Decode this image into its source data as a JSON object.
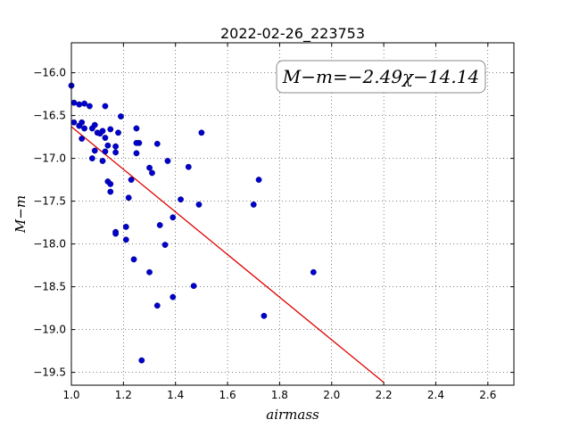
{
  "chart_data": {
    "type": "scatter",
    "title": "2022-02-26_223753",
    "xlabel": "airmass",
    "ylabel": "M−m",
    "xlim": [
      1.0,
      2.7
    ],
    "ylim": [
      -19.65,
      -15.65
    ],
    "xticks": [
      1.0,
      1.2,
      1.4,
      1.6,
      1.8,
      2.0,
      2.2,
      2.4,
      2.6
    ],
    "xtick_labels": [
      "1.0",
      "1.2",
      "1.4",
      "1.6",
      "1.8",
      "2.0",
      "2.2",
      "2.4",
      "2.6"
    ],
    "yticks": [
      -16.0,
      -16.5,
      -17.0,
      -17.5,
      -18.0,
      -18.5,
      -19.0,
      -19.5
    ],
    "ytick_labels": [
      "−16.0",
      "−16.5",
      "−17.0",
      "−17.5",
      "−18.0",
      "−18.5",
      "−19.0",
      "−19.5"
    ],
    "grid": true,
    "annotation": "M−m=−2.49χ−14.14",
    "point_color": "#0000cc",
    "fit_color": "#e00000",
    "fit_line": {
      "slope": -2.49,
      "intercept": -14.14,
      "x_range": [
        1.0,
        2.2
      ]
    },
    "points": [
      {
        "x": 1.0,
        "y": -16.15
      },
      {
        "x": 1.01,
        "y": -16.35
      },
      {
        "x": 1.01,
        "y": -16.58
      },
      {
        "x": 1.03,
        "y": -16.37
      },
      {
        "x": 1.03,
        "y": -16.62
      },
      {
        "x": 1.04,
        "y": -16.58
      },
      {
        "x": 1.05,
        "y": -16.36
      },
      {
        "x": 1.05,
        "y": -16.65
      },
      {
        "x": 1.04,
        "y": -16.77
      },
      {
        "x": 1.07,
        "y": -16.39
      },
      {
        "x": 1.08,
        "y": -16.65
      },
      {
        "x": 1.09,
        "y": -16.61
      },
      {
        "x": 1.08,
        "y": -17.0
      },
      {
        "x": 1.09,
        "y": -16.91
      },
      {
        "x": 1.1,
        "y": -16.7
      },
      {
        "x": 1.11,
        "y": -16.71
      },
      {
        "x": 1.12,
        "y": -16.68
      },
      {
        "x": 1.12,
        "y": -17.03
      },
      {
        "x": 1.13,
        "y": -16.76
      },
      {
        "x": 1.13,
        "y": -16.39
      },
      {
        "x": 1.14,
        "y": -16.85
      },
      {
        "x": 1.13,
        "y": -16.92
      },
      {
        "x": 1.15,
        "y": -16.66
      },
      {
        "x": 1.14,
        "y": -17.27
      },
      {
        "x": 1.15,
        "y": -17.3
      },
      {
        "x": 1.15,
        "y": -17.39
      },
      {
        "x": 1.17,
        "y": -16.86
      },
      {
        "x": 1.17,
        "y": -16.93
      },
      {
        "x": 1.18,
        "y": -16.7
      },
      {
        "x": 1.19,
        "y": -16.51
      },
      {
        "x": 1.17,
        "y": -17.86
      },
      {
        "x": 1.17,
        "y": -17.88
      },
      {
        "x": 1.21,
        "y": -17.8
      },
      {
        "x": 1.21,
        "y": -17.95
      },
      {
        "x": 1.22,
        "y": -17.46
      },
      {
        "x": 1.23,
        "y": -17.25
      },
      {
        "x": 1.25,
        "y": -16.65
      },
      {
        "x": 1.26,
        "y": -16.82
      },
      {
        "x": 1.25,
        "y": -16.82
      },
      {
        "x": 1.25,
        "y": -16.94
      },
      {
        "x": 1.24,
        "y": -18.18
      },
      {
        "x": 1.27,
        "y": -19.36
      },
      {
        "x": 1.3,
        "y": -17.11
      },
      {
        "x": 1.31,
        "y": -17.17
      },
      {
        "x": 1.33,
        "y": -16.83
      },
      {
        "x": 1.3,
        "y": -18.33
      },
      {
        "x": 1.34,
        "y": -17.78
      },
      {
        "x": 1.33,
        "y": -18.72
      },
      {
        "x": 1.37,
        "y": -17.03
      },
      {
        "x": 1.36,
        "y": -18.01
      },
      {
        "x": 1.39,
        "y": -17.69
      },
      {
        "x": 1.39,
        "y": -18.62
      },
      {
        "x": 1.42,
        "y": -17.48
      },
      {
        "x": 1.45,
        "y": -17.1
      },
      {
        "x": 1.47,
        "y": -18.49
      },
      {
        "x": 1.49,
        "y": -17.54
      },
      {
        "x": 1.5,
        "y": -16.7
      },
      {
        "x": 1.7,
        "y": -17.54
      },
      {
        "x": 1.72,
        "y": -17.25
      },
      {
        "x": 1.74,
        "y": -18.84
      },
      {
        "x": 1.93,
        "y": -18.33
      }
    ]
  }
}
